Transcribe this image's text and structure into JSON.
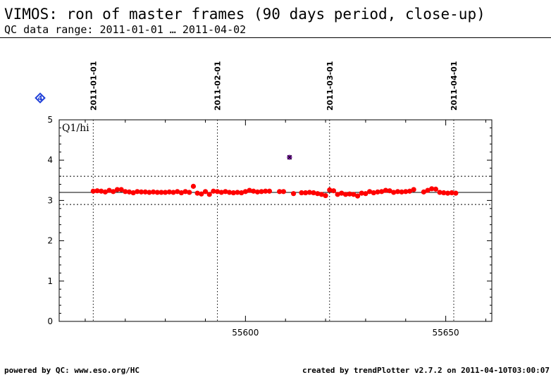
{
  "header": {
    "title": "VIMOS: ron of master frames (90 days period, close-up)",
    "subtitle": "QC data range: 2011-01-01 … 2011-04-02"
  },
  "footer": {
    "left": "powered by QC: www.eso.org/HC",
    "right": "created by trendPlotter v2.7.2 on 2011-04-10T03:00:07"
  },
  "badge": {
    "text": "4",
    "color": "#1f3fd8"
  },
  "chart_data": {
    "type": "scatter",
    "xlim": [
      55553.5,
      55661.5
    ],
    "ylim": [
      0,
      5
    ],
    "x_ticks": [
      55600,
      55650
    ],
    "x_tick_labels": [
      "55600",
      "55650"
    ],
    "y_ticks": [
      0,
      1,
      2,
      3,
      4,
      5
    ],
    "y_tick_labels": [
      "0",
      "1",
      "2",
      "3",
      "4",
      "5"
    ],
    "date_markers": [
      {
        "x": 55562,
        "label": "2011-01-01"
      },
      {
        "x": 55593,
        "label": "2011-02-01"
      },
      {
        "x": 55621,
        "label": "2011-03-01"
      },
      {
        "x": 55652,
        "label": "2011-04-01"
      }
    ],
    "panel_label": "Q1/hi",
    "reference_line": 3.2,
    "threshold_lines": [
      2.9,
      3.6
    ],
    "grid": false,
    "series_color": "#ff0000",
    "outlier_color": "#7b1fa2",
    "series": [
      {
        "name": "",
        "points": [
          [
            55562.0,
            3.23
          ],
          [
            55563.0,
            3.24
          ],
          [
            55564.0,
            3.23
          ],
          [
            55565.0,
            3.21
          ],
          [
            55566.0,
            3.25
          ],
          [
            55567.0,
            3.22
          ],
          [
            55568.0,
            3.27
          ],
          [
            55569.0,
            3.27
          ],
          [
            55570.0,
            3.22
          ],
          [
            55571.0,
            3.21
          ],
          [
            55572.0,
            3.19
          ],
          [
            55573.0,
            3.22
          ],
          [
            55574.0,
            3.21
          ],
          [
            55575.0,
            3.21
          ],
          [
            55576.0,
            3.2
          ],
          [
            55577.0,
            3.21
          ],
          [
            55578.0,
            3.2
          ],
          [
            55579.0,
            3.2
          ],
          [
            55580.0,
            3.2
          ],
          [
            55581.0,
            3.21
          ],
          [
            55582.0,
            3.2
          ],
          [
            55583.0,
            3.22
          ],
          [
            55584.0,
            3.19
          ],
          [
            55585.0,
            3.22
          ],
          [
            55586.0,
            3.2
          ],
          [
            55587.0,
            3.35
          ],
          [
            55588.0,
            3.18
          ],
          [
            55589.0,
            3.16
          ],
          [
            55590.0,
            3.22
          ],
          [
            55591.0,
            3.15
          ],
          [
            55592.0,
            3.23
          ],
          [
            55593.0,
            3.22
          ],
          [
            55594.0,
            3.2
          ],
          [
            55595.0,
            3.22
          ],
          [
            55596.0,
            3.2
          ],
          [
            55597.0,
            3.19
          ],
          [
            55598.0,
            3.2
          ],
          [
            55599.0,
            3.19
          ],
          [
            55600.0,
            3.22
          ],
          [
            55601.0,
            3.25
          ],
          [
            55602.0,
            3.23
          ],
          [
            55603.0,
            3.21
          ],
          [
            55604.0,
            3.22
          ],
          [
            55605.0,
            3.23
          ],
          [
            55606.0,
            3.23
          ],
          [
            55608.5,
            3.22
          ],
          [
            55609.5,
            3.22
          ],
          [
            55612.0,
            3.17
          ],
          [
            55614.0,
            3.19
          ],
          [
            55615.0,
            3.19
          ],
          [
            55616.0,
            3.2
          ],
          [
            55617.0,
            3.19
          ],
          [
            55618.0,
            3.17
          ],
          [
            55619.0,
            3.15
          ],
          [
            55620.0,
            3.12
          ],
          [
            55621.0,
            3.26
          ],
          [
            55622.0,
            3.24
          ],
          [
            55623.0,
            3.15
          ],
          [
            55624.0,
            3.18
          ],
          [
            55625.0,
            3.15
          ],
          [
            55626.0,
            3.16
          ],
          [
            55627.0,
            3.15
          ],
          [
            55628.0,
            3.11
          ],
          [
            55629.0,
            3.18
          ],
          [
            55630.0,
            3.17
          ],
          [
            55631.0,
            3.22
          ],
          [
            55632.0,
            3.19
          ],
          [
            55633.0,
            3.21
          ],
          [
            55634.0,
            3.22
          ],
          [
            55635.0,
            3.25
          ],
          [
            55636.0,
            3.24
          ],
          [
            55637.0,
            3.2
          ],
          [
            55638.0,
            3.22
          ],
          [
            55639.0,
            3.21
          ],
          [
            55640.0,
            3.22
          ],
          [
            55641.0,
            3.23
          ],
          [
            55642.0,
            3.27
          ],
          [
            55644.5,
            3.21
          ],
          [
            55645.5,
            3.25
          ],
          [
            55646.5,
            3.29
          ],
          [
            55647.5,
            3.28
          ],
          [
            55648.5,
            3.2
          ],
          [
            55649.5,
            3.19
          ],
          [
            55650.5,
            3.18
          ],
          [
            55651.5,
            3.19
          ],
          [
            55652.5,
            3.18
          ]
        ]
      }
    ],
    "outliers": [
      [
        55611.0,
        4.07
      ]
    ]
  }
}
